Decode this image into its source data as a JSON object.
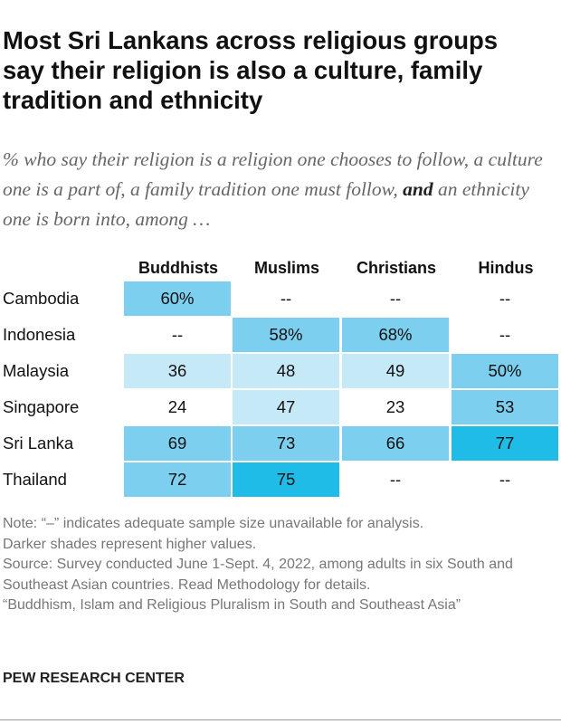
{
  "title": "Most Sri Lankans across religious groups say their religion is also a culture, family tradition and ethnicity",
  "subtitle": {
    "before": "% who say their religion is a religion one chooses to follow, a culture one is a part of, a family tradition one must follow,",
    "emphasis": "and",
    "after": "an ethnicity one is born into, among …"
  },
  "table": {
    "columns": [
      "Buddhists",
      "Muslims",
      "Christians",
      "Hindus"
    ],
    "rows": [
      {
        "label": "Cambodia",
        "cells": [
          "60%",
          "--",
          "--",
          "--"
        ],
        "shades": [
          "#7dcff0",
          "#ffffff",
          "#ffffff",
          "#ffffff"
        ]
      },
      {
        "label": "Indonesia",
        "cells": [
          "--",
          "58%",
          "68%",
          "--"
        ],
        "shades": [
          "#ffffff",
          "#7dcff0",
          "#7dcff0",
          "#ffffff"
        ]
      },
      {
        "label": "Malaysia",
        "cells": [
          "36",
          "48",
          "49",
          "50%"
        ],
        "shades": [
          "#c6e9f8",
          "#c6e9f8",
          "#c6e9f8",
          "#7dcff0"
        ]
      },
      {
        "label": "Singapore",
        "cells": [
          "24",
          "47",
          "23",
          "53"
        ],
        "shades": [
          "#ffffff",
          "#c6e9f8",
          "#ffffff",
          "#7dcff0"
        ]
      },
      {
        "label": "Sri Lanka",
        "cells": [
          "69",
          "73",
          "66",
          "77"
        ],
        "shades": [
          "#7dcff0",
          "#7dcff0",
          "#7dcff0",
          "#20bce8"
        ]
      },
      {
        "label": "Thailand",
        "cells": [
          "72",
          "75",
          "--",
          "--"
        ],
        "shades": [
          "#7dcff0",
          "#20bce8",
          "#ffffff",
          "#ffffff"
        ]
      }
    ]
  },
  "notes": [
    "Note: “–” indicates adequate sample size unavailable for analysis.",
    "Darker shades represent higher values.",
    "Source: Survey conducted June 1-Sept. 4, 2022, among adults in six South and Southeast Asian countries. Read Methodology for details.",
    "“Buddhism, Islam and Religious Pluralism in South and Southeast Asia”"
  ],
  "footer": "PEW RESEARCH CENTER"
}
